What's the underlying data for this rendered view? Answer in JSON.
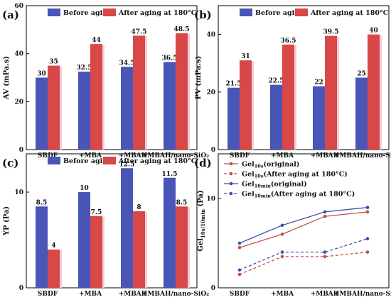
{
  "categories": [
    "SBDF",
    "+MBA",
    "+MBAH",
    "+MBAH/nano-SiO₂"
  ],
  "colors": {
    "before": "#4a55b8",
    "after": "#d84848"
  },
  "chart_data": [
    {
      "panel": "(a)",
      "type": "bar",
      "ylabel": "AV (mPa.s)",
      "ylim": [
        0,
        60
      ],
      "yticks": [
        "0",
        "20",
        "40",
        "60"
      ],
      "categories": [
        "SBDF",
        "+MBA",
        "+MBAH",
        "+MBAH/nano-SiO₂"
      ],
      "legend_position": "top",
      "series": [
        {
          "name": "Before aging",
          "values": [
            30,
            32.5,
            34.5,
            36.5
          ],
          "labels": [
            "30",
            "32.5",
            "34.5",
            "36.5"
          ]
        },
        {
          "name": "After aging  at 180°C",
          "values": [
            35,
            44,
            47.5,
            48.5
          ],
          "labels": [
            "35",
            "44",
            "47.5",
            "48.5"
          ]
        }
      ]
    },
    {
      "panel": "(b)",
      "type": "bar",
      "ylabel": "PV (mPa.s)",
      "ylim": [
        0,
        50
      ],
      "yticks": [
        "0",
        "20",
        "40"
      ],
      "categories": [
        "SBDF",
        "+MBA",
        "+MBAH",
        "+MBAH/nano-SiO₂"
      ],
      "legend_position": "top",
      "series": [
        {
          "name": "Before aging",
          "values": [
            21.5,
            22.5,
            22,
            25
          ],
          "labels": [
            "21.5",
            "22.5",
            "22",
            "25"
          ]
        },
        {
          "name": "After aging  at 180°C",
          "values": [
            31,
            36.5,
            39.5,
            40
          ],
          "labels": [
            "31",
            "36.5",
            "39.5",
            "40"
          ]
        }
      ]
    },
    {
      "panel": "(c)",
      "type": "bar",
      "ylabel": "YP (Pa)",
      "ylim": [
        0,
        14
      ],
      "yticks": [
        "0",
        "10"
      ],
      "categories": [
        "SBDF",
        "+MBA",
        "+MBAH",
        "+MBAH/nano-SiO₂"
      ],
      "legend_position": "top",
      "series": [
        {
          "name": "Before aging",
          "values": [
            8.5,
            10,
            12.5,
            11.5
          ],
          "labels": [
            "8.5",
            "10",
            "12.5",
            "11.5"
          ]
        },
        {
          "name": "After aging  at 180°C",
          "values": [
            4,
            7.5,
            8,
            8.5
          ],
          "labels": [
            "4",
            "7.5",
            "8",
            "8.5"
          ]
        }
      ]
    },
    {
      "panel": "(d)",
      "type": "line",
      "ylabel_main": "Gel",
      "ylabel_sub": "10s/10min",
      "ylabel_unit": " (Pa)",
      "ylim": [
        0,
        15
      ],
      "yticks": [
        "0",
        "10"
      ],
      "categories": [
        "SBDF",
        "+MBA",
        "+MBAH",
        "+MBAH/nano-SiO₂"
      ],
      "legend_position": "top-left",
      "series": [
        {
          "name_main": "Gel",
          "name_sub": "10s",
          "name_rest": "(original)",
          "color": "#c05040",
          "dashed": false,
          "values": [
            4.5,
            6,
            8,
            8.5
          ]
        },
        {
          "name_main": "Gel",
          "name_sub": "10s",
          "name_rest": "(After aging at 180°C)",
          "color": "#c05040",
          "dashed": true,
          "values": [
            1.5,
            3.5,
            3.5,
            4
          ]
        },
        {
          "name_main": "Gel",
          "name_sub": "10min",
          "name_rest": "(original)",
          "color": "#3f4ea8",
          "dashed": false,
          "values": [
            5,
            7,
            8.5,
            9
          ]
        },
        {
          "name_main": "Gel",
          "name_sub": "10min",
          "name_rest": "(After aging at 180°C)",
          "color": "#3f4ea8",
          "dashed": true,
          "values": [
            2,
            4,
            4,
            5.5
          ]
        }
      ]
    }
  ]
}
